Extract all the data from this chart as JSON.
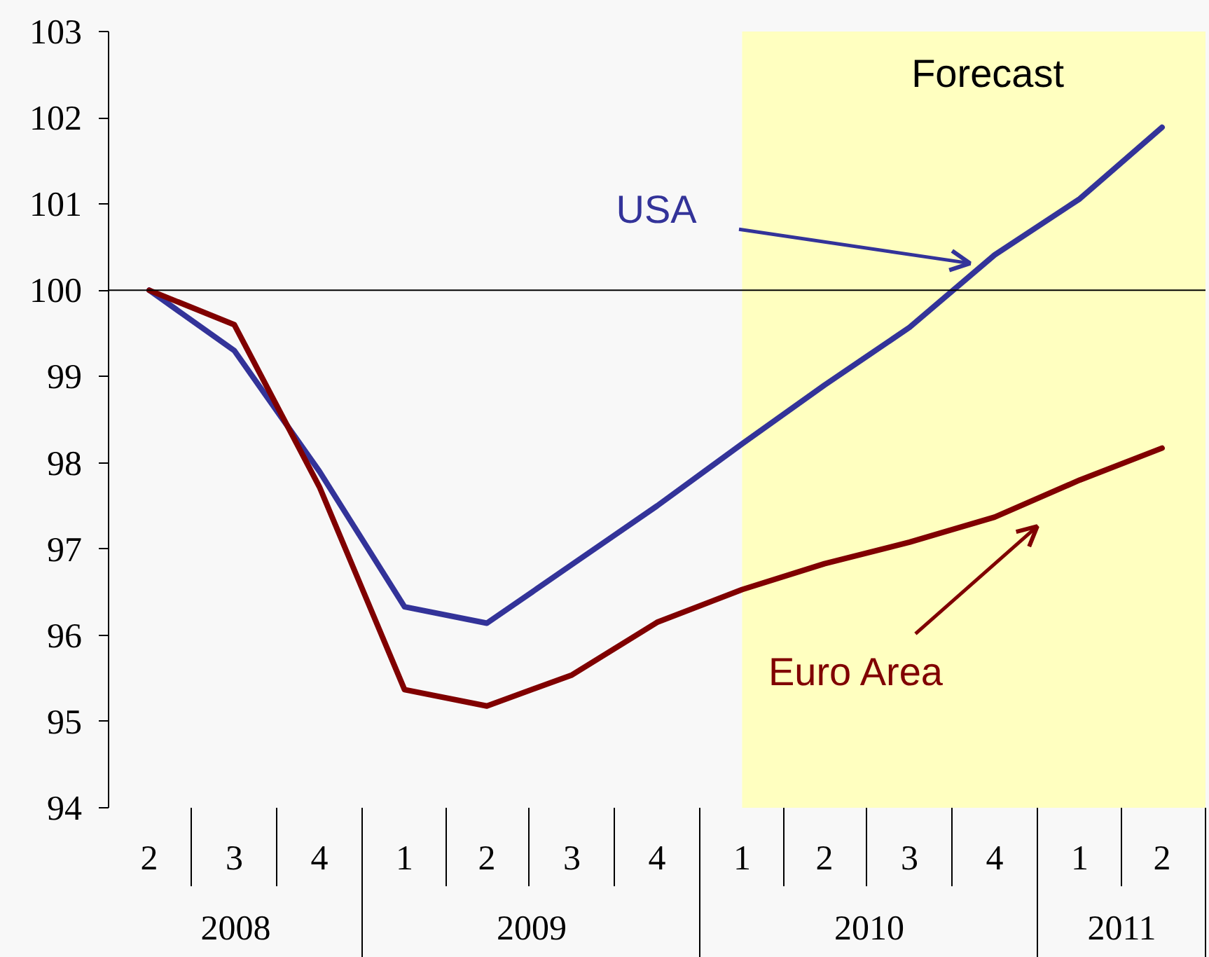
{
  "chart_data": {
    "type": "line",
    "x": [
      "2008-05-15",
      "2008-08-15",
      "2008-11-15",
      "2009-02-15",
      "2009-05-15",
      "2009-08-15",
      "2009-11-15",
      "2010-02-15",
      "2010-05-15",
      "2010-08-15",
      "2010-11-15",
      "2011-02-15",
      "2011-05-15"
    ],
    "xlim": [
      "2008-04-01",
      "2011-07-01"
    ],
    "xticks": [
      {
        "value": "2008-05-15",
        "label": "2"
      },
      {
        "value": "2008-08-15",
        "label": "3"
      },
      {
        "value": "2008-11-15",
        "label": "4"
      },
      {
        "value": "2009-02-15",
        "label": "1"
      },
      {
        "value": "2009-05-15",
        "label": "2"
      },
      {
        "value": "2009-08-15",
        "label": "3"
      },
      {
        "value": "2009-11-15",
        "label": "4"
      },
      {
        "value": "2010-02-15",
        "label": "1"
      },
      {
        "value": "2010-05-15",
        "label": "2"
      },
      {
        "value": "2010-08-15",
        "label": "3"
      },
      {
        "value": "2010-11-15",
        "label": "4"
      },
      {
        "value": "2011-02-15",
        "label": "1"
      },
      {
        "value": "2011-05-15",
        "label": "2"
      }
    ],
    "ylim": [
      94,
      103
    ],
    "yticks": [
      94,
      95,
      96,
      97,
      98,
      99,
      100,
      101,
      102,
      103
    ],
    "series": [
      {
        "name": "USA",
        "color": "#333399",
        "values": [
          100,
          99.3,
          97.9,
          96.33,
          96.14,
          96.82,
          97.5,
          98.22,
          98.9,
          99.57,
          100.41,
          101.06,
          101.89
        ]
      },
      {
        "name": "Euro Area",
        "color": "#800000",
        "values": [
          100,
          99.6,
          97.72,
          95.37,
          95.18,
          95.54,
          96.15,
          96.53,
          96.83,
          97.08,
          97.37,
          97.8,
          98.17
        ]
      }
    ],
    "bands": [
      {
        "axis": "x",
        "from": "2010-02-15",
        "to": "2011-07-01",
        "label": "Forecast",
        "color": "#ffffc0"
      }
    ],
    "ref_lines": [
      {
        "axis": "y",
        "value": 100,
        "color": "#000000"
      }
    ],
    "annotations": [
      "2008",
      "2009",
      "2010",
      "2011"
    ]
  }
}
